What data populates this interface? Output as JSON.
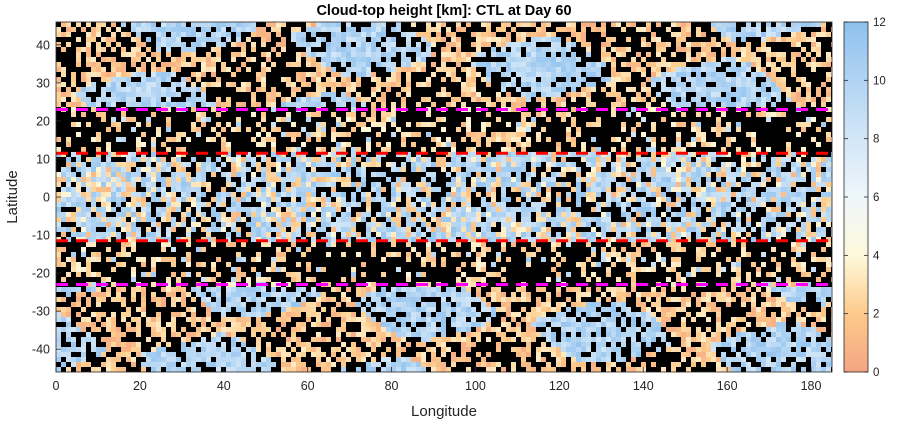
{
  "chart_data": {
    "type": "heatmap",
    "title": "Cloud-top height [km]: CTL at Day 60",
    "xlabel": "Longitude",
    "ylabel": "Latitude",
    "xlim": [
      0,
      185
    ],
    "ylim": [
      -46,
      46
    ],
    "x_ticks": [
      0,
      20,
      40,
      60,
      80,
      100,
      120,
      140,
      160,
      180
    ],
    "y_ticks": [
      -40,
      -30,
      -20,
      -10,
      0,
      10,
      20,
      30,
      40
    ],
    "colorbar": {
      "range": [
        0,
        12
      ],
      "ticks": [
        0,
        2,
        4,
        6,
        8,
        10,
        12
      ],
      "stops": [
        {
          "value": 0,
          "color": "#f4a582"
        },
        {
          "value": 2,
          "color": "#fdcb8c"
        },
        {
          "value": 4,
          "color": "#fef9dc"
        },
        {
          "value": 6,
          "color": "#eef6fb"
        },
        {
          "value": 8,
          "color": "#d2e6f7"
        },
        {
          "value": 12,
          "color": "#8fc1ee"
        }
      ]
    },
    "background_color": "#000000",
    "reference_lines": [
      {
        "latitude": 23,
        "color": "#ff00ff",
        "style": "dashed"
      },
      {
        "latitude": 11.5,
        "color": "#ff0000",
        "style": "dashed"
      },
      {
        "latitude": -11.5,
        "color": "#ff0000",
        "style": "dashed"
      },
      {
        "latitude": -23,
        "color": "#ff00ff",
        "style": "dashed"
      }
    ]
  }
}
